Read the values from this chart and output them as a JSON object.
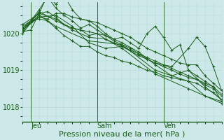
{
  "bg_color": "#cce8e8",
  "line_color": "#1a5e1a",
  "grid_color": "#b8d8d8",
  "xlabel": "Pression niveau de la mer( hPa )",
  "tick_color": "#1a5e1a",
  "yticks": [
    1018,
    1019,
    1020
  ],
  "ylim": [
    1017.6,
    1020.85
  ],
  "xlim": [
    0,
    72
  ],
  "xtick_positions": [
    3,
    27,
    51
  ],
  "xtick_labels": [
    "Jeu",
    "Sam",
    "Ven"
  ],
  "vline_positions": [
    3,
    27,
    51
  ],
  "series": [
    [
      0,
      1020.15,
      3,
      1020.3,
      6,
      1020.5,
      12,
      1020.2,
      24,
      1019.8,
      36,
      1019.7,
      48,
      1019.0,
      60,
      1018.7,
      66,
      1018.3,
      72,
      1018.15
    ],
    [
      0,
      1020.05,
      3,
      1020.1,
      6,
      1020.55,
      12,
      1020.4,
      18,
      1020.1,
      24,
      1019.9,
      30,
      1019.85,
      36,
      1019.6,
      48,
      1018.9,
      60,
      1018.5,
      72,
      1018.1
    ],
    [
      0,
      1020.0,
      6,
      1020.6,
      12,
      1020.35,
      18,
      1020.15,
      24,
      1020.05,
      30,
      1019.95,
      36,
      1019.75,
      42,
      1019.5,
      48,
      1019.15,
      54,
      1018.85,
      60,
      1019.0,
      66,
      1018.55,
      72,
      1018.2
    ],
    [
      0,
      1020.1,
      6,
      1020.45,
      12,
      1020.5,
      18,
      1020.2,
      24,
      1019.75,
      30,
      1019.6,
      36,
      1019.65,
      42,
      1019.4,
      48,
      1019.2,
      54,
      1019.1,
      60,
      1019.6,
      63,
      1019.9,
      66,
      1019.65,
      69,
      1019.1,
      72,
      1018.45
    ],
    [
      0,
      1020.2,
      3,
      1020.35,
      6,
      1020.4,
      9,
      1020.35,
      12,
      1020.15,
      15,
      1019.95,
      18,
      1019.8,
      21,
      1019.65,
      24,
      1019.65,
      27,
      1019.5,
      30,
      1019.4,
      33,
      1019.35,
      36,
      1019.25,
      39,
      1019.2,
      42,
      1019.1,
      45,
      1019.0,
      48,
      1018.95,
      51,
      1018.85,
      54,
      1018.8,
      57,
      1018.75,
      60,
      1018.7,
      63,
      1018.65,
      66,
      1018.5,
      69,
      1018.4,
      72,
      1018.2
    ],
    [
      0,
      1020.25,
      6,
      1020.55,
      9,
      1020.6,
      12,
      1020.45,
      15,
      1020.25,
      18,
      1020.15,
      21,
      1020.1,
      24,
      1019.95,
      27,
      1020.0,
      30,
      1019.85,
      33,
      1019.75,
      36,
      1019.65,
      39,
      1019.55,
      42,
      1019.45,
      45,
      1019.3,
      48,
      1019.2,
      51,
      1019.1,
      54,
      1019.0,
      57,
      1018.9,
      60,
      1018.8,
      63,
      1018.75,
      66,
      1018.6,
      69,
      1018.5,
      72,
      1018.3
    ],
    [
      0,
      1020.05,
      6,
      1020.65,
      9,
      1021.0,
      12,
      1020.7,
      15,
      1020.5,
      18,
      1020.35,
      21,
      1020.15,
      24,
      1020.25,
      27,
      1020.1,
      30,
      1019.95,
      33,
      1019.8,
      36,
      1019.7,
      39,
      1019.6,
      42,
      1019.45,
      45,
      1019.35,
      48,
      1019.25,
      51,
      1019.15,
      54,
      1019.05,
      57,
      1018.95,
      60,
      1018.85,
      63,
      1018.75,
      66,
      1018.65,
      69,
      1018.55,
      72,
      1018.35
    ],
    [
      0,
      1020.1,
      3,
      1020.3,
      6,
      1020.45,
      9,
      1020.4,
      12,
      1020.55,
      15,
      1020.55,
      18,
      1020.45,
      21,
      1020.4,
      24,
      1020.35,
      27,
      1020.3,
      30,
      1020.2,
      33,
      1020.1,
      36,
      1020.0,
      39,
      1019.9,
      42,
      1019.75,
      45,
      1019.6,
      48,
      1019.5,
      51,
      1019.4,
      54,
      1019.3,
      57,
      1019.2,
      60,
      1019.15,
      63,
      1019.15,
      66,
      1018.85,
      69,
      1018.65,
      72,
      1018.45
    ],
    [
      0,
      1020.15,
      6,
      1020.55,
      9,
      1021.05,
      12,
      1020.8,
      15,
      1021.05,
      18,
      1020.65,
      21,
      1020.4,
      24,
      1020.35,
      27,
      1020.2,
      30,
      1020.0,
      33,
      1019.85,
      36,
      1019.9,
      39,
      1019.75,
      42,
      1019.6,
      45,
      1020.0,
      48,
      1020.2,
      51,
      1019.9,
      54,
      1019.55,
      57,
      1019.7,
      60,
      1019.0,
      63,
      1018.85,
      66,
      1018.7,
      69,
      1018.55,
      72,
      1018.15
    ]
  ]
}
